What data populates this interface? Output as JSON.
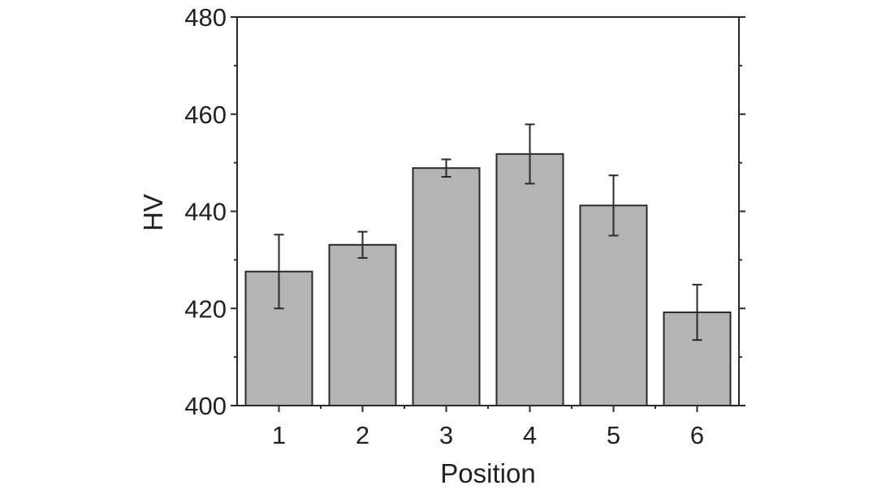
{
  "chart_data": {
    "type": "bar",
    "title": "",
    "xlabel": "Position",
    "ylabel": "HV",
    "categories": [
      "1",
      "2",
      "3",
      "4",
      "5",
      "6"
    ],
    "values": [
      427.6,
      433.1,
      448.9,
      451.8,
      441.2,
      419.2
    ],
    "errors": [
      7.6,
      2.7,
      1.8,
      6.1,
      6.2,
      5.7
    ],
    "ylim": [
      400,
      480
    ],
    "yticks": [
      "400",
      "420",
      "440",
      "460",
      "480"
    ],
    "grid": false,
    "colors": {
      "bar": "#b4b4b4",
      "edge": "#2a2a2a"
    }
  }
}
